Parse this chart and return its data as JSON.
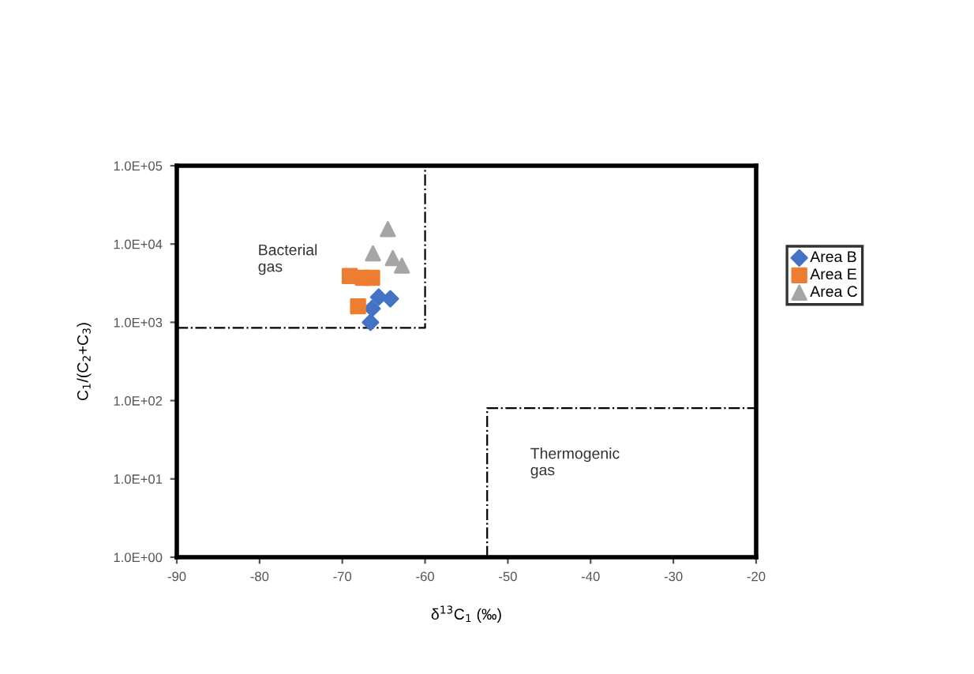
{
  "chart_data": {
    "type": "scatter",
    "xlabel": "δ$^{13}$C$_{1}$ (‰)",
    "ylabel": "C$_{1}$/(C$_{2}$+C$_{3}$)",
    "log": "y",
    "xlim": [
      -90,
      -20
    ],
    "xticks": [
      -90,
      -80,
      -70,
      -60,
      -50,
      -40,
      -30,
      -20
    ],
    "ylim": [
      1,
      100000
    ],
    "yticks": [
      {
        "value": 1,
        "label": "1.0E+00"
      },
      {
        "value": 10,
        "label": "1.0E+01"
      },
      {
        "value": 100,
        "label": "1.0E+02"
      },
      {
        "value": 1000,
        "label": "1.0E+03"
      },
      {
        "value": 10000,
        "label": "1.0E+04"
      },
      {
        "value": 100000,
        "label": "1.0E+05"
      }
    ],
    "grid": false,
    "legend": "right",
    "annotations": [
      "Bacterial\ngas",
      "Thermogenic\ngas"
    ],
    "series": [
      {
        "name": "Area B",
        "color": "#4472c4",
        "marker": "diamond",
        "x": [
          -64.2,
          -65.6,
          -66.4,
          -66.6
        ],
        "values": [
          2000,
          2100,
          1500,
          1000
        ]
      },
      {
        "name": "Area E",
        "color": "#ed7d31",
        "marker": "square",
        "x": [
          -69.1,
          -67.5,
          -66.4,
          -68.1
        ],
        "values": [
          3900,
          3700,
          3700,
          1600
        ]
      },
      {
        "name": "Area C",
        "color": "#a5a5a5",
        "marker": "triangle",
        "x": [
          -64.5,
          -66.3,
          -63.9,
          -62.8
        ],
        "values": [
          15500,
          7600,
          6600,
          5300
        ]
      },
      {
        "type": "line",
        "color": "#000000",
        "line_style": "dashed",
        "marker": "none",
        "x": [
          -90,
          -60,
          -60
        ],
        "values": [
          850,
          850,
          100000
        ]
      },
      {
        "type": "line",
        "color": "#000000",
        "line_style": "dashed",
        "marker": "none",
        "x": [
          -52.5,
          -52.5,
          -20
        ],
        "values": [
          1,
          80,
          80
        ]
      }
    ]
  }
}
